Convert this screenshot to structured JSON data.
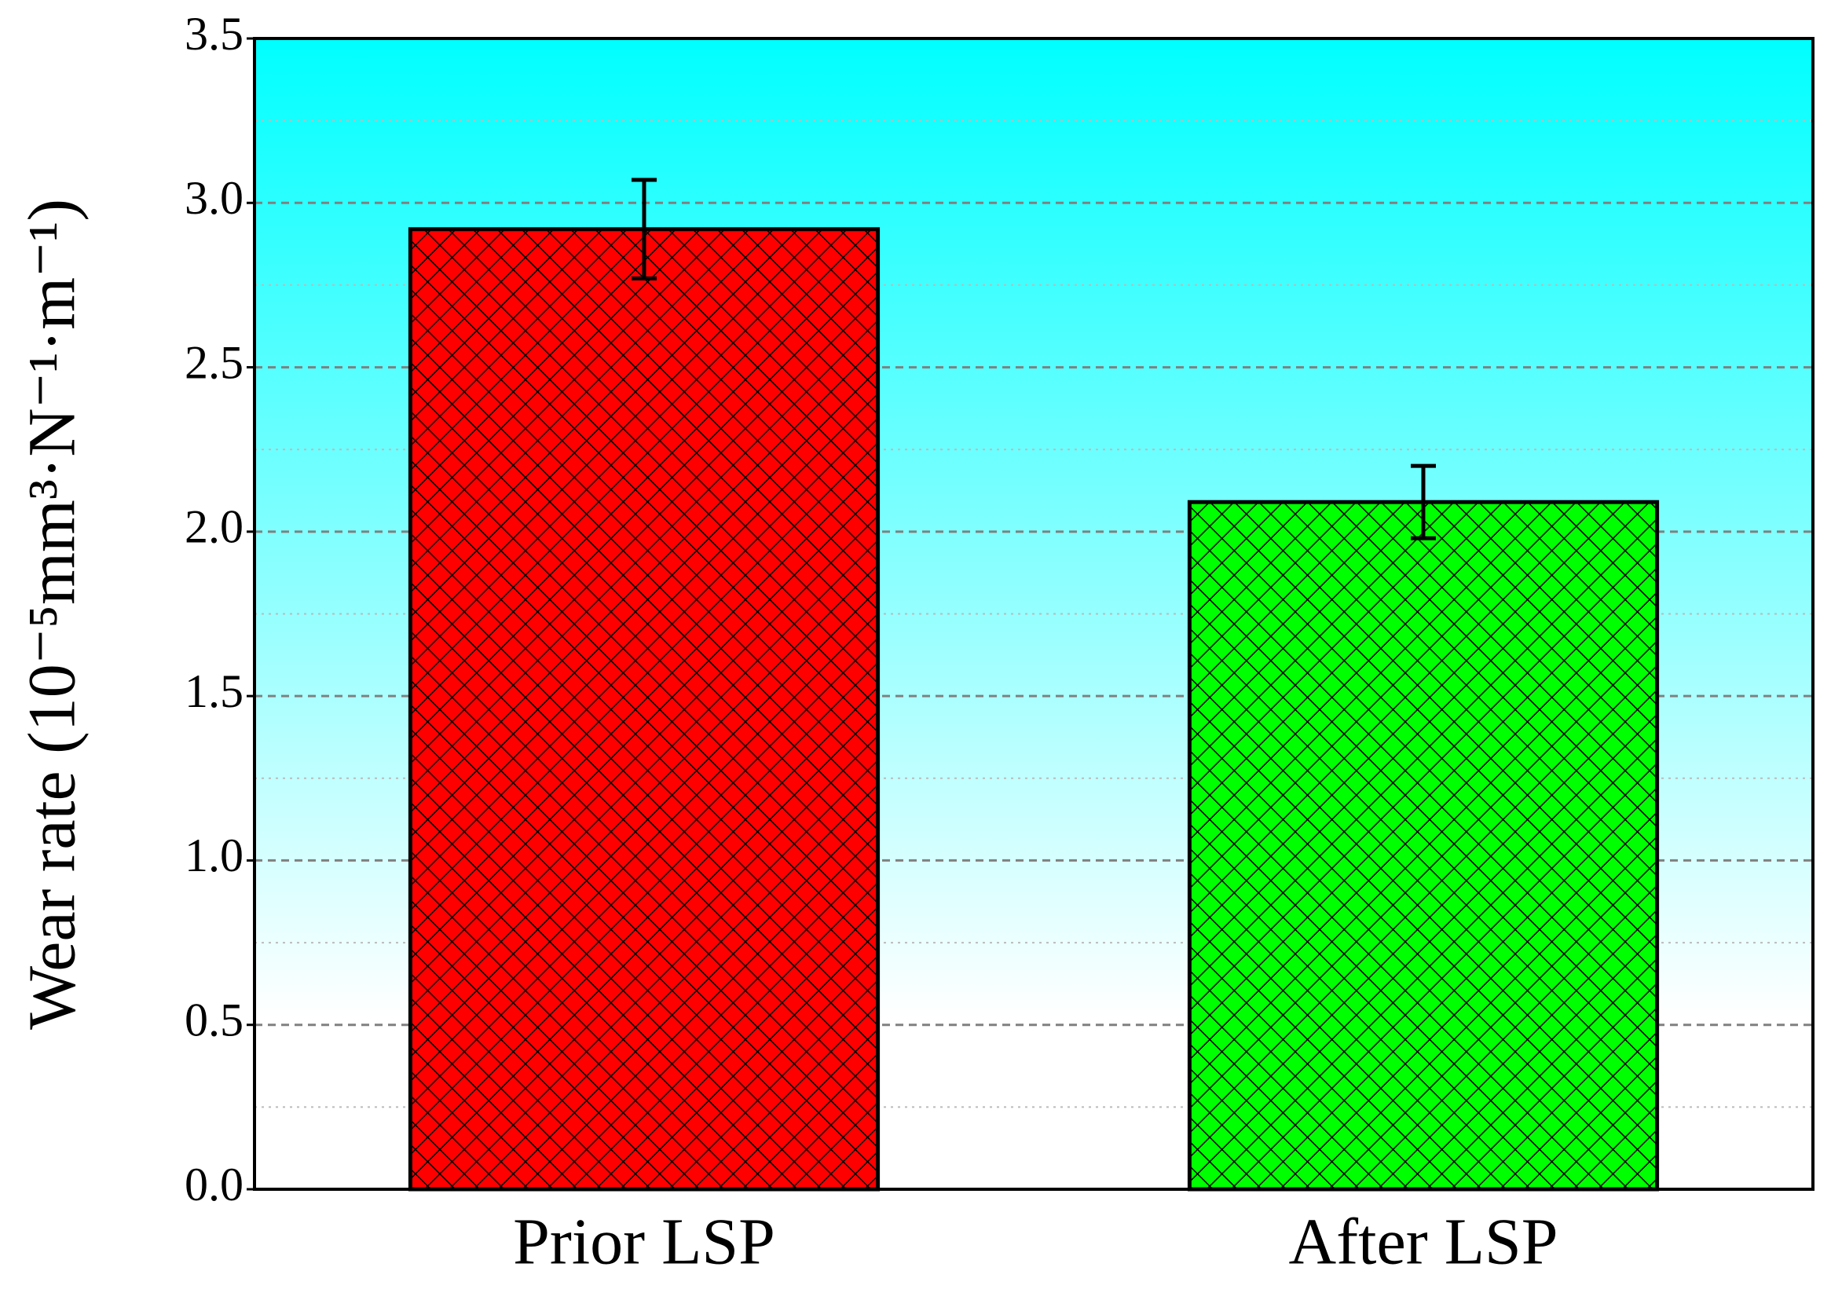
{
  "chart_data": {
    "type": "bar",
    "ylabel": "Wear rate (10⁻⁵mm³·N⁻¹·m⁻¹)",
    "categories": [
      "Prior LSP",
      "After LSP"
    ],
    "values": [
      2.92,
      2.09
    ],
    "errors": [
      0.15,
      0.11
    ],
    "colors": [
      "#ff0000",
      "#00ff00"
    ],
    "ylim": [
      0,
      3.5
    ],
    "yticks": [
      {
        "value": 0,
        "label": "0.0"
      },
      0.5,
      {
        "value": 1,
        "label": "1.0"
      },
      1.5,
      {
        "value": 2,
        "label": "2.0"
      },
      2.5,
      {
        "value": 3,
        "label": "3.0"
      },
      3.5
    ],
    "y_minor_grid": [
      0.25,
      0.75,
      1.25,
      1.75,
      2.25,
      2.75,
      3.25
    ],
    "grid": true
  }
}
